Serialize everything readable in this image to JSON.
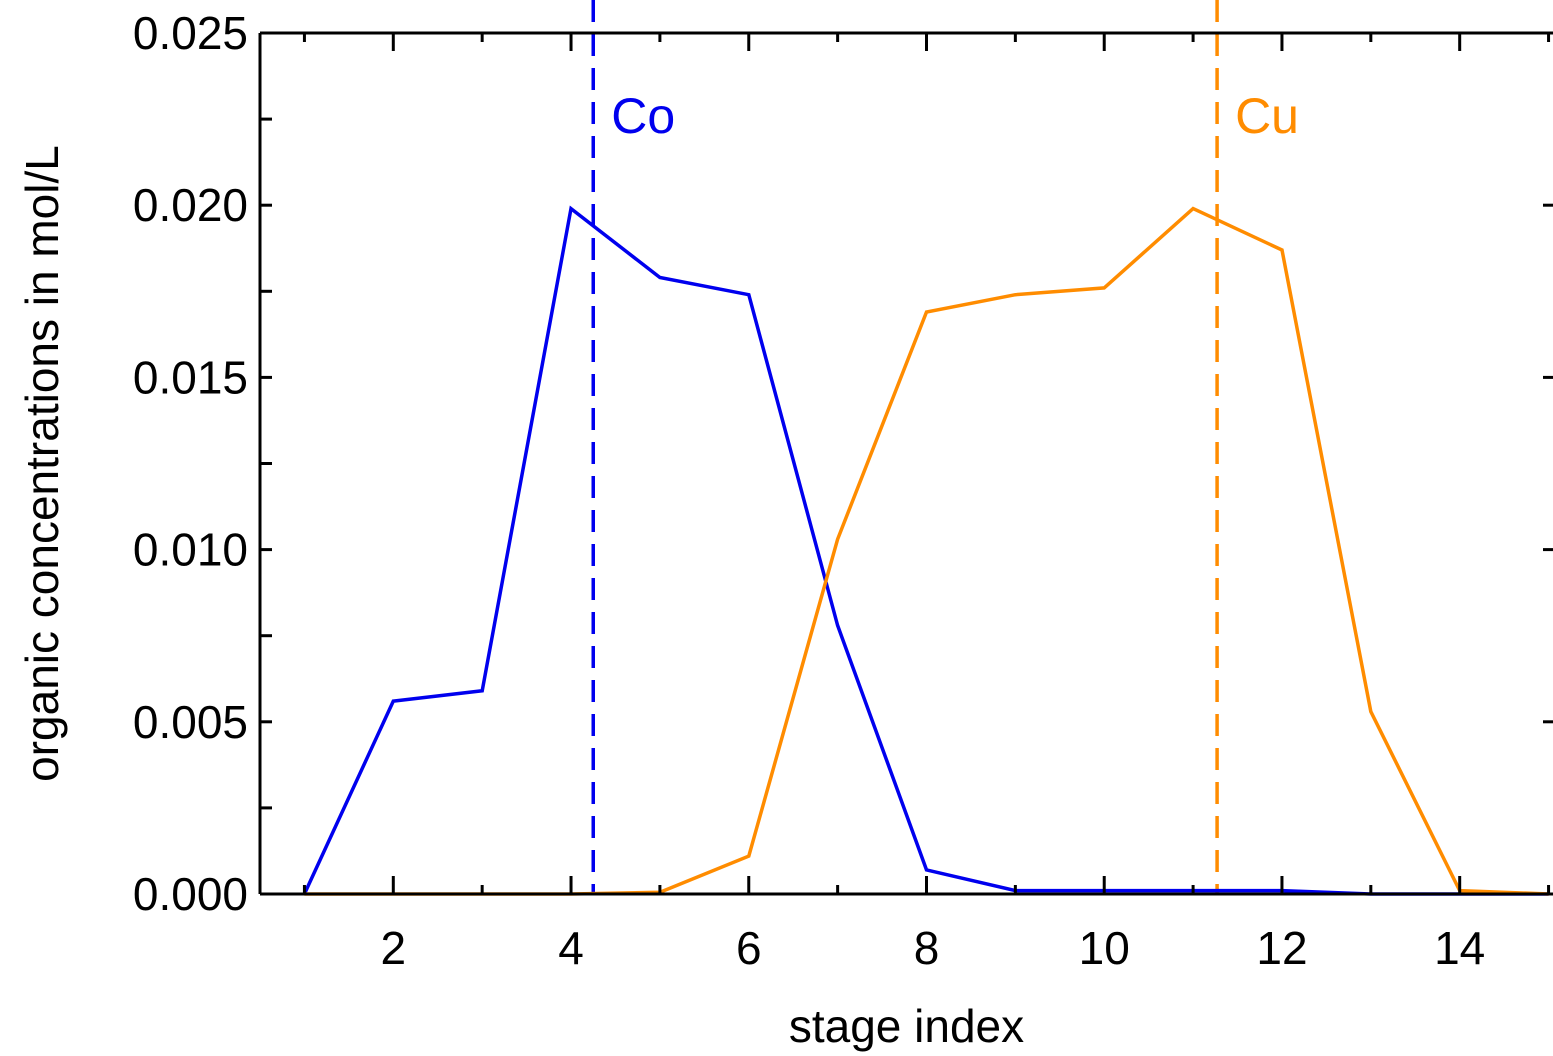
{
  "chart_data": {
    "type": "line",
    "xlabel": "stage index",
    "ylabel": "organic concentrations in mol/L",
    "xlim": [
      0.5,
      15.05
    ],
    "ylim": [
      0,
      0.025
    ],
    "x_ticks": [
      2,
      4,
      6,
      8,
      10,
      12,
      14
    ],
    "x_minor_ticks": [
      1,
      3,
      5,
      7,
      9,
      11,
      13,
      15
    ],
    "y_ticks": [
      0.0,
      0.005,
      0.01,
      0.015,
      0.02,
      0.025
    ],
    "y_tick_labels": [
      "0.000",
      "0.005",
      "0.010",
      "0.015",
      "0.020",
      "0.025"
    ],
    "y_minor_ticks": [
      0.0025,
      0.0075,
      0.0125,
      0.0175,
      0.0225
    ],
    "grid": false,
    "series": [
      {
        "color": "#0000ee",
        "x": [
          1,
          2,
          3,
          4,
          5,
          6,
          7,
          8,
          9,
          10,
          11,
          12,
          13,
          14,
          15
        ],
        "y": [
          0.0,
          0.0056,
          0.0059,
          0.0199,
          0.0179,
          0.0174,
          0.0078,
          0.0007,
          0.0001,
          0.0001,
          0.0001,
          0.0001,
          0.0,
          0.0,
          0.0
        ]
      },
      {
        "color": "#ff8c00",
        "x": [
          1,
          2,
          3,
          4,
          5,
          6,
          7,
          8,
          9,
          10,
          11,
          12,
          13,
          14,
          15
        ],
        "y": [
          0.0,
          0.0,
          0.0,
          0.0,
          5e-05,
          0.0011,
          0.0103,
          0.0169,
          0.0174,
          0.0176,
          0.0199,
          0.0187,
          0.0053,
          0.0001,
          0.0
        ]
      }
    ],
    "annotations": [
      {
        "text": "Co",
        "x": 4.25,
        "color": "#0000ee"
      },
      {
        "text": "Cu",
        "x": 11.27,
        "color": "#ff8c00"
      }
    ]
  }
}
